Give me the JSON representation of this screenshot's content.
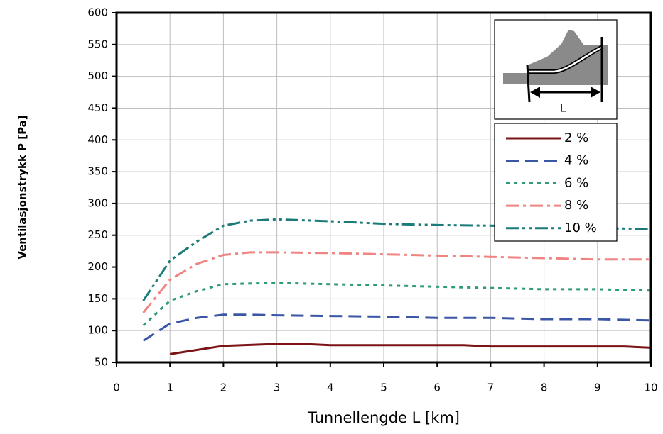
{
  "chart_data": {
    "type": "line",
    "x_label": "Tunnellengde L [km]",
    "y_label": "Ventilasjonstrykk P [Pa]",
    "inset_label": "L",
    "xlim": [
      0,
      10
    ],
    "xticks": [
      0,
      1,
      2,
      3,
      4,
      5,
      6,
      7,
      8,
      9,
      10
    ],
    "ylim": [
      50,
      600
    ],
    "yticks": [
      50,
      100,
      150,
      200,
      250,
      300,
      350,
      400,
      450,
      500,
      550,
      600
    ],
    "grid": true,
    "series": [
      {
        "name": "2 %",
        "color": "#7b1416",
        "dash": "none",
        "x": [
          1,
          2,
          3,
          3.5,
          4,
          5,
          6,
          6.5,
          7,
          8,
          9,
          9.5,
          10
        ],
        "values": [
          63,
          76,
          79,
          79,
          77,
          77,
          77,
          77,
          75,
          75,
          75,
          75,
          73
        ]
      },
      {
        "name": "4 %",
        "color": "#3b56a5",
        "dash": "18 9",
        "x": [
          0.5,
          1,
          1.5,
          2,
          2.5,
          3,
          4,
          5,
          6,
          7,
          8,
          9,
          10
        ],
        "values": [
          84,
          111,
          120,
          125,
          125,
          124,
          123,
          122,
          120,
          120,
          118,
          118,
          116
        ]
      },
      {
        "name": "6 %",
        "color": "#2e9a78",
        "dash": "5 6",
        "x": [
          0.5,
          1,
          1.5,
          2,
          3,
          4,
          5,
          6,
          7,
          8,
          9,
          10
        ],
        "values": [
          108,
          147,
          162,
          173,
          175,
          173,
          171,
          169,
          167,
          165,
          165,
          163
        ]
      },
      {
        "name": "8 %",
        "color": "#ef8582",
        "dash": "18 6 4 6",
        "x": [
          0.5,
          1,
          1.5,
          2,
          2.5,
          3,
          4,
          5,
          6,
          7,
          8,
          9,
          10
        ],
        "values": [
          128,
          180,
          205,
          219,
          223,
          223,
          222,
          220,
          218,
          216,
          214,
          212,
          212
        ]
      },
      {
        "name": "10 %",
        "color": "#1b7b78",
        "dash": "18 5 4 5 4 5",
        "x": [
          0.5,
          1,
          1.5,
          2,
          2.5,
          3,
          4,
          5,
          6,
          7,
          8,
          9,
          10
        ],
        "values": [
          147,
          210,
          240,
          265,
          273,
          275,
          272,
          268,
          266,
          265,
          263,
          261,
          260
        ]
      }
    ]
  }
}
